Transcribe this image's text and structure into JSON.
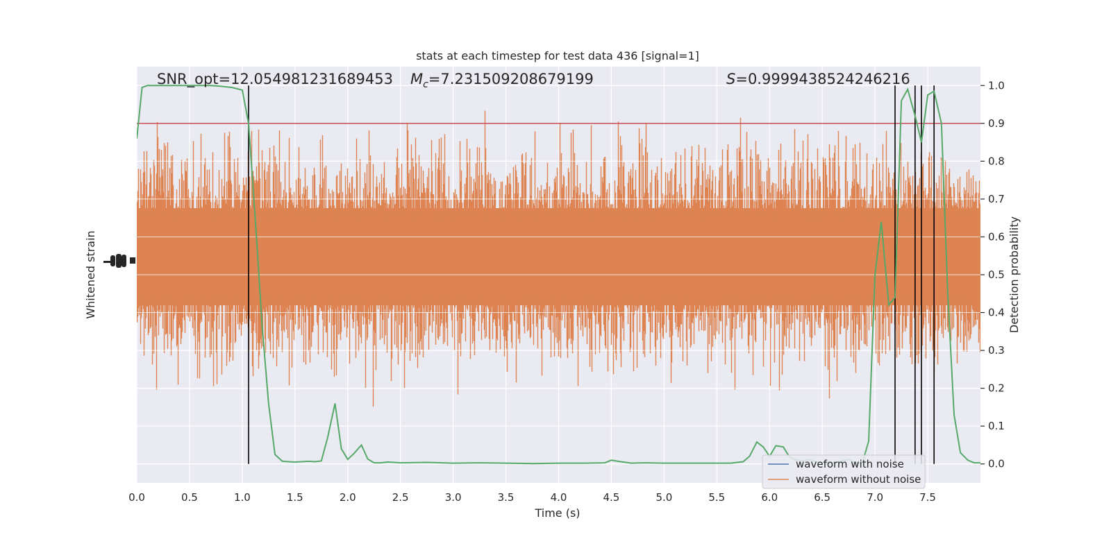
{
  "chart_data": {
    "type": "line",
    "title": "stats at each timestep for test data 436 [signal=1]",
    "xlabel": "Time (s)",
    "ylabel_left": "Whitened strain",
    "ylabel_right": "Detection probability",
    "xlim": [
      0.0,
      8.0
    ],
    "ylim_right": [
      -0.05,
      1.05
    ],
    "xticks": [
      "0.0",
      "0.5",
      "1.0",
      "1.5",
      "2.0",
      "2.5",
      "3.0",
      "3.5",
      "4.0",
      "4.5",
      "5.0",
      "5.5",
      "6.0",
      "6.5",
      "7.0",
      "7.5"
    ],
    "yticks_right": [
      "0.0",
      "0.1",
      "0.2",
      "0.3",
      "0.4",
      "0.5",
      "0.6",
      "0.7",
      "0.8",
      "0.9",
      "1.0"
    ],
    "annotations": {
      "snr": "SNR_opt=12.054981231689453",
      "mc_symbol": "M",
      "mc_sub": "c",
      "mc_value": "=7.231509208679199",
      "s_symbol": "S",
      "s_value": "=0.9999438524246216"
    },
    "threshold": 0.9,
    "vertical_lines_x": [
      1.06,
      7.19,
      7.38,
      7.44,
      7.56
    ],
    "legend": [
      {
        "label": "waveform with noise",
        "color": "#4c72b0"
      },
      {
        "label": "waveform without noise",
        "color": "#dd8452"
      }
    ],
    "legend_position": "lower-right",
    "grid": true,
    "probability_series": {
      "name": "",
      "color": "#55a868",
      "x": [
        0.0,
        0.05,
        0.1,
        0.2,
        0.3,
        0.4,
        0.5,
        0.6,
        0.7,
        0.8,
        0.9,
        1.0,
        1.06,
        1.13,
        1.19,
        1.25,
        1.31,
        1.38,
        1.44,
        1.5,
        1.56,
        1.63,
        1.69,
        1.75,
        1.81,
        1.88,
        1.94,
        2.0,
        2.06,
        2.13,
        2.19,
        2.25,
        2.31,
        2.38,
        2.44,
        2.5,
        2.75,
        3.0,
        3.25,
        3.5,
        3.75,
        4.0,
        4.25,
        4.44,
        4.5,
        4.56,
        4.69,
        4.81,
        5.0,
        5.25,
        5.5,
        5.63,
        5.75,
        5.81,
        5.88,
        5.94,
        6.0,
        6.06,
        6.13,
        6.19,
        6.25,
        6.31,
        6.38,
        6.44,
        6.5,
        6.56,
        6.63,
        6.69,
        6.75,
        6.81,
        6.88,
        6.94,
        7.0,
        7.06,
        7.13,
        7.19,
        7.25,
        7.31,
        7.38,
        7.44,
        7.5,
        7.56,
        7.63,
        7.69,
        7.75,
        7.81,
        7.88,
        7.94,
        8.0
      ],
      "y": [
        0.86,
        0.995,
        1.0,
        1.0,
        1.0,
        1.0,
        1.0,
        1.0,
        1.0,
        0.998,
        0.995,
        0.988,
        0.9,
        0.62,
        0.36,
        0.16,
        0.025,
        0.007,
        0.006,
        0.005,
        0.006,
        0.007,
        0.006,
        0.008,
        0.07,
        0.16,
        0.04,
        0.012,
        0.028,
        0.05,
        0.013,
        0.003,
        0.003,
        0.005,
        0.004,
        0.003,
        0.004,
        0.002,
        0.003,
        0.002,
        0.001,
        0.002,
        0.002,
        0.003,
        0.01,
        0.007,
        0.002,
        0.003,
        0.002,
        0.002,
        0.002,
        0.002,
        0.006,
        0.02,
        0.058,
        0.045,
        0.02,
        0.048,
        0.045,
        0.018,
        0.01,
        0.008,
        0.012,
        0.005,
        0.003,
        0.002,
        0.004,
        0.008,
        0.012,
        0.003,
        0.003,
        0.06,
        0.5,
        0.64,
        0.42,
        0.44,
        0.96,
        0.99,
        0.92,
        0.85,
        0.975,
        0.985,
        0.9,
        0.45,
        0.13,
        0.03,
        0.01,
        0.003,
        0.003
      ]
    }
  }
}
